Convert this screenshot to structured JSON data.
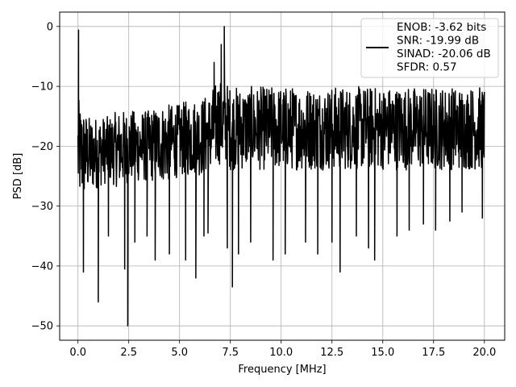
{
  "chart_data": {
    "type": "line",
    "xlabel": "Frequency [MHz]",
    "ylabel": "PSD [dB]",
    "xlim": [
      -0.9,
      21.0
    ],
    "ylim": [
      -52.4,
      2.4
    ],
    "xticks": [
      0.0,
      2.5,
      5.0,
      7.5,
      10.0,
      12.5,
      15.0,
      17.5,
      20.0
    ],
    "xtick_labels": [
      "0.0",
      "2.5",
      "5.0",
      "7.5",
      "10.0",
      "12.5",
      "15.0",
      "17.5",
      "20.0"
    ],
    "yticks": [
      0,
      -10,
      -20,
      -30,
      -40,
      -50
    ],
    "ytick_labels": [
      "0",
      "−10",
      "−20",
      "−30",
      "−40",
      "−50"
    ],
    "grid": true,
    "legend_position": "top-right",
    "series": [
      {
        "name": "ENOB: -3.62 bits\nSNR: -19.99 dB\nSINAD: -20.06 dB\nSFDR: 0.57",
        "legend_lines": [
          "ENOB: -3.62 bits",
          "SNR: -19.99 dB",
          "SINAD: -20.06 dB",
          "SFDR: 0.57"
        ],
        "color": "#000000",
        "band_low": [
          [
            0.0,
            -30
          ],
          [
            0.5,
            -28
          ],
          [
            1.0,
            -27
          ],
          [
            1.5,
            -26
          ],
          [
            2.0,
            -27
          ],
          [
            2.5,
            -26
          ],
          [
            3.0,
            -26
          ],
          [
            3.5,
            -26
          ],
          [
            4.0,
            -26
          ],
          [
            4.5,
            -26
          ],
          [
            5.0,
            -25
          ],
          [
            5.5,
            -25
          ],
          [
            6.0,
            -25
          ],
          [
            6.5,
            -25
          ],
          [
            7.0,
            -23
          ],
          [
            7.5,
            -24
          ],
          [
            8.0,
            -24
          ],
          [
            8.5,
            -24
          ],
          [
            9.0,
            -24
          ],
          [
            9.5,
            -24
          ],
          [
            10.0,
            -24
          ],
          [
            10.5,
            -24
          ],
          [
            11.0,
            -24
          ],
          [
            11.5,
            -24
          ],
          [
            12.0,
            -24
          ],
          [
            12.5,
            -24
          ],
          [
            13.0,
            -24
          ],
          [
            13.5,
            -24
          ],
          [
            14.0,
            -24
          ],
          [
            14.5,
            -24
          ],
          [
            15.0,
            -24
          ],
          [
            15.5,
            -24
          ],
          [
            16.0,
            -24
          ],
          [
            16.5,
            -24
          ],
          [
            17.0,
            -24
          ],
          [
            17.5,
            -24
          ],
          [
            18.0,
            -24
          ],
          [
            18.5,
            -24
          ],
          [
            19.0,
            -24
          ],
          [
            19.5,
            -24
          ],
          [
            20.0,
            -24
          ]
        ],
        "band_high": [
          [
            0.0,
            -12
          ],
          [
            0.5,
            -15
          ],
          [
            1.0,
            -15
          ],
          [
            1.5,
            -15
          ],
          [
            2.0,
            -14
          ],
          [
            2.5,
            -14
          ],
          [
            3.0,
            -14
          ],
          [
            3.5,
            -14
          ],
          [
            4.0,
            -13
          ],
          [
            4.5,
            -13
          ],
          [
            5.0,
            -13
          ],
          [
            5.5,
            -12
          ],
          [
            6.0,
            -12
          ],
          [
            6.5,
            -11
          ],
          [
            7.0,
            -8
          ],
          [
            7.5,
            -10
          ],
          [
            8.0,
            -10
          ],
          [
            8.5,
            -10
          ],
          [
            9.0,
            -10
          ],
          [
            9.5,
            -10
          ],
          [
            10.0,
            -10
          ],
          [
            10.5,
            -10
          ],
          [
            11.0,
            -10
          ],
          [
            11.5,
            -10
          ],
          [
            12.0,
            -10
          ],
          [
            12.5,
            -10
          ],
          [
            13.0,
            -10
          ],
          [
            13.5,
            -10
          ],
          [
            14.0,
            -10
          ],
          [
            14.5,
            -10
          ],
          [
            15.0,
            -10
          ],
          [
            15.5,
            -10
          ],
          [
            16.0,
            -10
          ],
          [
            16.5,
            -10
          ],
          [
            17.0,
            -10
          ],
          [
            17.5,
            -10
          ],
          [
            18.0,
            -10
          ],
          [
            18.5,
            -10
          ],
          [
            19.0,
            -10
          ],
          [
            19.5,
            -10
          ],
          [
            20.0,
            -10
          ]
        ],
        "spikes": [
          [
            0.03,
            -0.6
          ],
          [
            0.27,
            -41
          ],
          [
            1.0,
            -46
          ],
          [
            1.5,
            -35
          ],
          [
            2.3,
            -40.5
          ],
          [
            2.45,
            -50
          ],
          [
            2.8,
            -36
          ],
          [
            3.4,
            -35
          ],
          [
            3.8,
            -39
          ],
          [
            4.5,
            -38
          ],
          [
            5.3,
            -39
          ],
          [
            5.8,
            -42
          ],
          [
            6.2,
            -35
          ],
          [
            6.4,
            -34.5
          ],
          [
            6.7,
            -6
          ],
          [
            7.05,
            -3
          ],
          [
            7.2,
            0
          ],
          [
            7.35,
            -37
          ],
          [
            7.6,
            -43.5
          ],
          [
            7.9,
            -38
          ],
          [
            8.5,
            -36
          ],
          [
            9.6,
            -39
          ],
          [
            10.2,
            -38
          ],
          [
            11.2,
            -36
          ],
          [
            11.8,
            -38
          ],
          [
            12.5,
            -36
          ],
          [
            12.9,
            -41
          ],
          [
            13.7,
            -35
          ],
          [
            14.3,
            -37
          ],
          [
            14.6,
            -39
          ],
          [
            15.7,
            -35
          ],
          [
            16.3,
            -34
          ],
          [
            17.0,
            -33
          ],
          [
            17.6,
            -34
          ],
          [
            18.3,
            -32.5
          ],
          [
            18.9,
            -31
          ],
          [
            19.9,
            -32
          ]
        ]
      }
    ]
  }
}
